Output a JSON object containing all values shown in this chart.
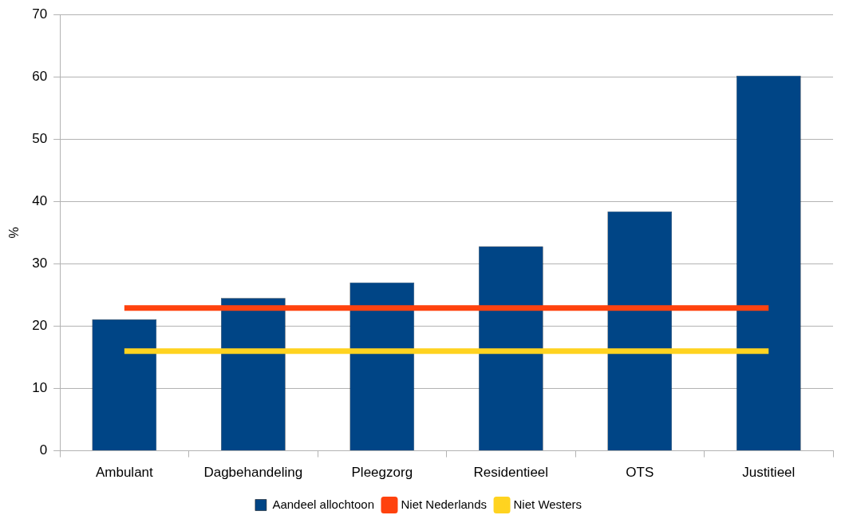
{
  "chart_data": {
    "type": "bar",
    "ylabel": "%",
    "categories": [
      "Ambulant",
      "Dagbehandeling",
      "Pleegzorg",
      "Residentieel",
      "OTS",
      "Justitieel"
    ],
    "series": [
      {
        "name": "Aandeel allochtoon",
        "color": "#004586",
        "values": [
          21.1,
          24.5,
          27.0,
          32.8,
          38.4,
          60.2
        ]
      },
      {
        "name": "Niet Nederlands",
        "type": "line",
        "color": "#ff420e",
        "values": [
          22.9,
          22.9,
          22.9,
          22.9,
          22.9,
          22.9
        ]
      },
      {
        "name": "Niet Westers",
        "type": "line",
        "color": "#ffd320",
        "values": [
          16.0,
          16.0,
          16.0,
          16.0,
          16.0,
          16.0
        ]
      }
    ],
    "ylim": [
      0,
      70
    ],
    "yticks": [
      0,
      10,
      20,
      30,
      40,
      50,
      60,
      70
    ],
    "grid": "y",
    "legend": "bottom",
    "marker": "none",
    "line_style": "solid"
  }
}
